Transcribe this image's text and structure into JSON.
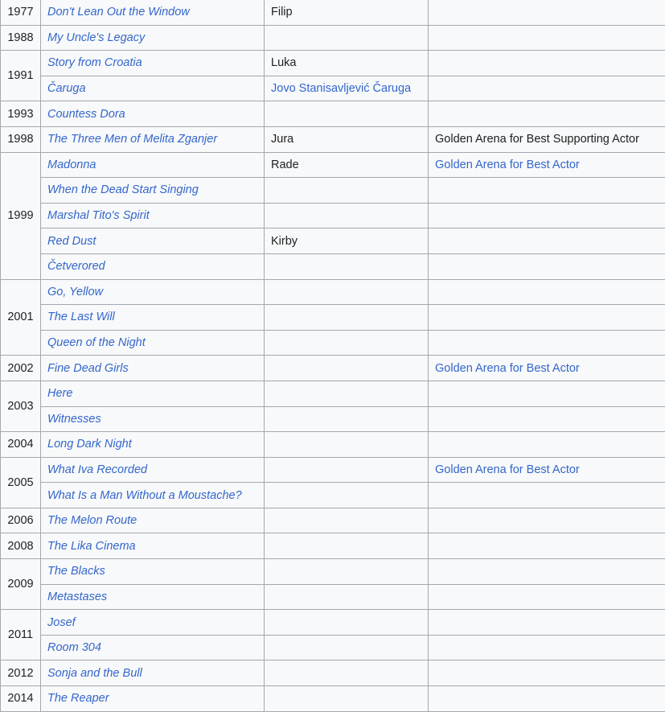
{
  "theme": {
    "cell_background": "#f8f9fa",
    "border_color": "#a2a9b1",
    "link_color": "#3366cc",
    "text_color": "#202122"
  },
  "table": {
    "rows": [
      {
        "year": "1977",
        "span": 1,
        "title": "Don't Lean Out the Window",
        "role": "Filip",
        "role_link": false,
        "note": "",
        "note_link": false
      },
      {
        "year": "1988",
        "span": 1,
        "title": "My Uncle's Legacy",
        "role": "",
        "role_link": false,
        "note": "",
        "note_link": false
      },
      {
        "year": "1991",
        "span": 2,
        "title": "Story from Croatia",
        "role": "Luka",
        "role_link": false,
        "note": "",
        "note_link": false
      },
      {
        "title": "Čaruga",
        "role": "Jovo Stanisavljević Čaruga",
        "role_link": true,
        "note": "",
        "note_link": false
      },
      {
        "year": "1993",
        "span": 1,
        "title": "Countess Dora",
        "role": "",
        "role_link": false,
        "note": "",
        "note_link": false
      },
      {
        "year": "1998",
        "span": 1,
        "title": "The Three Men of Melita Zganjer",
        "role": "Jura",
        "role_link": false,
        "note": "Golden Arena for Best Supporting Actor",
        "note_link": false
      },
      {
        "year": "1999",
        "span": 5,
        "title": "Madonna",
        "role": "Rade",
        "role_link": false,
        "note": "Golden Arena for Best Actor",
        "note_link": true
      },
      {
        "title": "When the Dead Start Singing",
        "role": "",
        "role_link": false,
        "note": "",
        "note_link": false
      },
      {
        "title": "Marshal Tito's Spirit",
        "role": "",
        "role_link": false,
        "note": "",
        "note_link": false
      },
      {
        "title": "Red Dust",
        "role": "Kirby",
        "role_link": false,
        "note": "",
        "note_link": false
      },
      {
        "title": "Četverored",
        "role": "",
        "role_link": false,
        "note": "",
        "note_link": false
      },
      {
        "year": "2001",
        "span": 3,
        "title": "Go, Yellow",
        "role": "",
        "role_link": false,
        "note": "",
        "note_link": false
      },
      {
        "title": "The Last Will",
        "role": "",
        "role_link": false,
        "note": "",
        "note_link": false
      },
      {
        "title": "Queen of the Night",
        "role": "",
        "role_link": false,
        "note": "",
        "note_link": false
      },
      {
        "year": "2002",
        "span": 1,
        "title": "Fine Dead Girls",
        "role": "",
        "role_link": false,
        "note": "Golden Arena for Best Actor",
        "note_link": true
      },
      {
        "year": "2003",
        "span": 2,
        "title": "Here",
        "role": "",
        "role_link": false,
        "note": "",
        "note_link": false
      },
      {
        "title": "Witnesses",
        "role": "",
        "role_link": false,
        "note": "",
        "note_link": false
      },
      {
        "year": "2004",
        "span": 1,
        "title": "Long Dark Night",
        "role": "",
        "role_link": false,
        "note": "",
        "note_link": false
      },
      {
        "year": "2005",
        "span": 2,
        "title": "What Iva Recorded",
        "role": "",
        "role_link": false,
        "note": "Golden Arena for Best Actor",
        "note_link": true
      },
      {
        "title": "What Is a Man Without a Moustache?",
        "role": "",
        "role_link": false,
        "note": "",
        "note_link": false
      },
      {
        "year": "2006",
        "span": 1,
        "title": "The Melon Route",
        "role": "",
        "role_link": false,
        "note": "",
        "note_link": false
      },
      {
        "year": "2008",
        "span": 1,
        "title": "The Lika Cinema",
        "role": "",
        "role_link": false,
        "note": "",
        "note_link": false
      },
      {
        "year": "2009",
        "span": 2,
        "title": "The Blacks",
        "role": "",
        "role_link": false,
        "note": "",
        "note_link": false
      },
      {
        "title": "Metastases",
        "role": "",
        "role_link": false,
        "note": "",
        "note_link": false
      },
      {
        "year": "2011",
        "span": 2,
        "title": "Josef",
        "role": "",
        "role_link": false,
        "note": "",
        "note_link": false
      },
      {
        "title": "Room 304",
        "role": "",
        "role_link": false,
        "note": "",
        "note_link": false
      },
      {
        "year": "2012",
        "span": 1,
        "title": "Sonja and the Bull",
        "role": "",
        "role_link": false,
        "note": "",
        "note_link": false
      },
      {
        "year": "2014",
        "span": 1,
        "title": "The Reaper",
        "role": "",
        "role_link": false,
        "note": "",
        "note_link": false
      }
    ]
  }
}
